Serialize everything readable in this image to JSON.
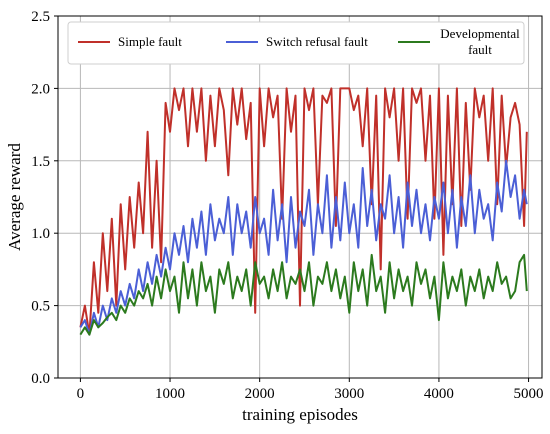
{
  "chart_data": {
    "type": "line",
    "title": "",
    "xlabel": "training episodes",
    "ylabel": "Average reward",
    "xlim": [
      -250,
      5150
    ],
    "ylim": [
      0.0,
      2.5
    ],
    "xticks": [
      0,
      1000,
      2000,
      3000,
      4000,
      5000
    ],
    "yticks": [
      0.0,
      0.5,
      1.0,
      1.5,
      2.0,
      2.5
    ],
    "xtick_labels": [
      "0",
      "1000",
      "2000",
      "3000",
      "4000",
      "5000"
    ],
    "ytick_labels": [
      "0.0",
      "0.5",
      "1.0",
      "1.5",
      "2.0",
      "2.5"
    ],
    "grid": true,
    "legend_position": "top",
    "series": [
      {
        "name": "Simple fault",
        "color": "#c0302a",
        "x": [
          0,
          50,
          100,
          150,
          200,
          250,
          300,
          350,
          400,
          450,
          500,
          550,
          600,
          650,
          700,
          750,
          800,
          850,
          900,
          950,
          1000,
          1050,
          1100,
          1150,
          1200,
          1250,
          1300,
          1350,
          1400,
          1450,
          1500,
          1550,
          1600,
          1650,
          1700,
          1750,
          1800,
          1850,
          1900,
          1950,
          2000,
          2050,
          2100,
          2150,
          2200,
          2250,
          2300,
          2350,
          2400,
          2450,
          2500,
          2550,
          2600,
          2650,
          2700,
          2750,
          2800,
          2850,
          2900,
          2950,
          3000,
          3050,
          3100,
          3150,
          3200,
          3250,
          3300,
          3350,
          3400,
          3450,
          3500,
          3550,
          3600,
          3650,
          3700,
          3750,
          3800,
          3850,
          3900,
          3950,
          4000,
          4050,
          4100,
          4150,
          4200,
          4250,
          4300,
          4350,
          4400,
          4450,
          4500,
          4550,
          4600,
          4650,
          4700,
          4750,
          4800,
          4850,
          4900,
          4950,
          4980
        ],
        "values": [
          0.35,
          0.5,
          0.3,
          0.8,
          0.45,
          1.0,
          0.6,
          1.1,
          0.5,
          1.2,
          0.75,
          1.25,
          0.9,
          1.35,
          1.0,
          1.7,
          0.9,
          1.5,
          0.8,
          1.9,
          1.7,
          2.0,
          1.85,
          2.0,
          1.6,
          2.0,
          1.7,
          2.0,
          1.5,
          1.95,
          1.6,
          2.0,
          1.85,
          1.4,
          2.0,
          1.75,
          2.0,
          1.65,
          1.9,
          0.45,
          2.0,
          1.6,
          2.0,
          1.8,
          1.95,
          1.1,
          2.0,
          1.7,
          1.95,
          0.5,
          2.0,
          1.85,
          2.0,
          1.2,
          1.95,
          1.9,
          2.0,
          1.05,
          2.0,
          2.0,
          2.0,
          1.85,
          1.95,
          1.6,
          2.0,
          1.2,
          1.95,
          0.75,
          2.0,
          1.8,
          2.0,
          1.5,
          2.0,
          1.1,
          2.0,
          1.9,
          2.0,
          1.5,
          1.95,
          1.1,
          2.0,
          0.85,
          1.95,
          1.2,
          2.0,
          1.05,
          1.9,
          1.3,
          2.0,
          1.8,
          1.95,
          1.5,
          2.0,
          1.2,
          1.95,
          1.45,
          1.8,
          1.9,
          1.75,
          1.05,
          1.7
        ]
      },
      {
        "name": "Switch refusal fault",
        "color": "#4b5fd6",
        "x": [
          0,
          50,
          100,
          150,
          200,
          250,
          300,
          350,
          400,
          450,
          500,
          550,
          600,
          650,
          700,
          750,
          800,
          850,
          900,
          950,
          1000,
          1050,
          1100,
          1150,
          1200,
          1250,
          1300,
          1350,
          1400,
          1450,
          1500,
          1550,
          1600,
          1650,
          1700,
          1750,
          1800,
          1850,
          1900,
          1950,
          2000,
          2050,
          2100,
          2150,
          2200,
          2250,
          2300,
          2350,
          2400,
          2450,
          2500,
          2550,
          2600,
          2650,
          2700,
          2750,
          2800,
          2850,
          2900,
          2950,
          3000,
          3050,
          3100,
          3150,
          3200,
          3250,
          3300,
          3350,
          3400,
          3450,
          3500,
          3550,
          3600,
          3650,
          3700,
          3750,
          3800,
          3850,
          3900,
          3950,
          4000,
          4050,
          4100,
          4150,
          4200,
          4250,
          4300,
          4350,
          4400,
          4450,
          4500,
          4550,
          4600,
          4650,
          4700,
          4750,
          4800,
          4850,
          4900,
          4950,
          4980
        ],
        "values": [
          0.35,
          0.4,
          0.3,
          0.45,
          0.35,
          0.5,
          0.4,
          0.55,
          0.45,
          0.6,
          0.5,
          0.65,
          0.55,
          0.75,
          0.6,
          0.8,
          0.65,
          0.85,
          0.7,
          0.9,
          0.75,
          1.0,
          0.85,
          1.05,
          0.8,
          1.1,
          0.9,
          1.15,
          0.85,
          1.2,
          0.95,
          1.1,
          1.0,
          1.25,
          0.85,
          1.2,
          1.0,
          1.15,
          0.9,
          1.25,
          1.0,
          1.1,
          0.85,
          1.3,
          0.95,
          1.2,
          0.8,
          1.25,
          0.9,
          1.15,
          1.05,
          1.3,
          0.85,
          1.2,
          1.0,
          1.4,
          0.9,
          1.25,
          0.95,
          1.35,
          1.0,
          1.2,
          0.9,
          1.45,
          1.05,
          1.3,
          0.95,
          1.2,
          1.1,
          1.4,
          1.0,
          1.25,
          0.9,
          1.35,
          1.05,
          1.3,
          1.0,
          1.2,
          0.95,
          1.25,
          1.1,
          1.35,
          1.0,
          1.3,
          0.9,
          1.25,
          1.05,
          1.4,
          1.0,
          1.3,
          1.1,
          1.2,
          0.95,
          1.35,
          1.15,
          1.5,
          1.25,
          1.4,
          1.1,
          1.3,
          1.2
        ]
      },
      {
        "name": "Developmental fault",
        "color": "#2c7a1e",
        "x": [
          0,
          50,
          100,
          150,
          200,
          250,
          300,
          350,
          400,
          450,
          500,
          550,
          600,
          650,
          700,
          750,
          800,
          850,
          900,
          950,
          1000,
          1050,
          1100,
          1150,
          1200,
          1250,
          1300,
          1350,
          1400,
          1450,
          1500,
          1550,
          1600,
          1650,
          1700,
          1750,
          1800,
          1850,
          1900,
          1950,
          2000,
          2050,
          2100,
          2150,
          2200,
          2250,
          2300,
          2350,
          2400,
          2450,
          2500,
          2550,
          2600,
          2650,
          2700,
          2750,
          2800,
          2850,
          2900,
          2950,
          3000,
          3050,
          3100,
          3150,
          3200,
          3250,
          3300,
          3350,
          3400,
          3450,
          3500,
          3550,
          3600,
          3650,
          3700,
          3750,
          3800,
          3850,
          3900,
          3950,
          4000,
          4050,
          4100,
          4150,
          4200,
          4250,
          4300,
          4350,
          4400,
          4450,
          4500,
          4550,
          4600,
          4650,
          4700,
          4750,
          4800,
          4850,
          4900,
          4950,
          4980
        ],
        "values": [
          0.3,
          0.35,
          0.3,
          0.4,
          0.35,
          0.38,
          0.42,
          0.45,
          0.4,
          0.5,
          0.45,
          0.55,
          0.5,
          0.6,
          0.55,
          0.65,
          0.5,
          0.7,
          0.55,
          0.75,
          0.6,
          0.7,
          0.45,
          0.8,
          0.55,
          0.75,
          0.5,
          0.8,
          0.6,
          0.7,
          0.45,
          0.75,
          0.65,
          0.8,
          0.55,
          0.7,
          0.6,
          0.75,
          0.5,
          0.8,
          0.65,
          0.7,
          0.55,
          0.75,
          0.6,
          0.8,
          0.55,
          0.7,
          0.65,
          0.75,
          0.6,
          0.8,
          0.5,
          0.7,
          0.65,
          0.8,
          0.6,
          0.75,
          0.55,
          0.7,
          0.45,
          0.8,
          0.6,
          0.75,
          0.5,
          0.85,
          0.6,
          0.7,
          0.45,
          0.8,
          0.55,
          0.75,
          0.6,
          0.7,
          0.5,
          0.8,
          0.65,
          0.75,
          0.55,
          0.7,
          0.4,
          0.8,
          0.55,
          0.7,
          0.6,
          0.75,
          0.5,
          0.7,
          0.6,
          0.75,
          0.55,
          0.7,
          0.6,
          0.8,
          0.65,
          0.7,
          0.55,
          0.6,
          0.8,
          0.85,
          0.6
        ]
      }
    ]
  }
}
